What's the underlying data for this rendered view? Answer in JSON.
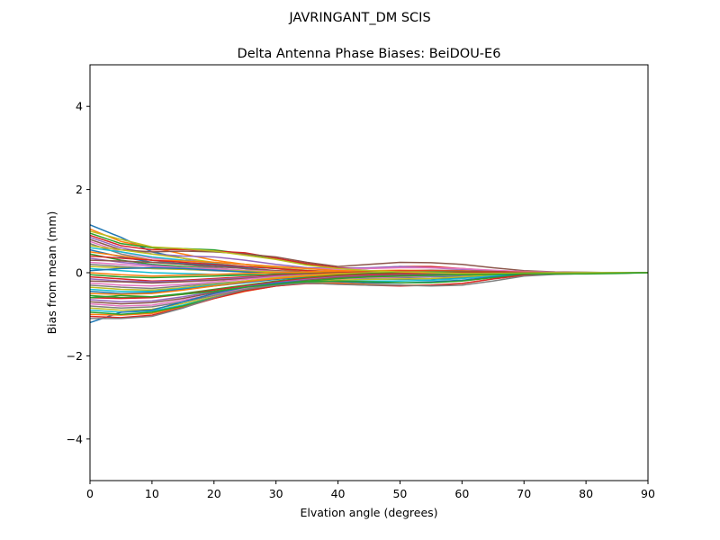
{
  "chart_data": {
    "type": "line",
    "suptitle": "JAVRINGANT_DM   SCIS",
    "title": "Delta Antenna Phase Biases: BeiDOU-E6",
    "xlabel": "Elvation angle (degrees)",
    "ylabel": "Bias from mean (mm)",
    "xlim": [
      0,
      90
    ],
    "ylim": [
      -5,
      5
    ],
    "xticks": [
      0,
      10,
      20,
      30,
      40,
      50,
      60,
      70,
      80,
      90
    ],
    "yticks": [
      -4,
      -2,
      0,
      2,
      4
    ],
    "ytick_labels": [
      "−4",
      "−2",
      "0",
      "2",
      "4"
    ],
    "grid": false,
    "legend": "none",
    "x": [
      0,
      5,
      10,
      15,
      20,
      25,
      30,
      35,
      40,
      45,
      50,
      55,
      60,
      65,
      70,
      75,
      80,
      85,
      90
    ],
    "series": [
      {
        "color": "#1f77b4",
        "values": [
          1.15,
          0.85,
          0.5,
          0.35,
          0.2,
          0.1,
          0.0,
          -0.08,
          -0.12,
          -0.15,
          -0.16,
          -0.15,
          -0.12,
          -0.08,
          -0.04,
          -0.02,
          -0.01,
          0.0,
          0.0
        ]
      },
      {
        "color": "#ff7f0e",
        "values": [
          1.05,
          0.75,
          0.6,
          0.45,
          0.3,
          0.2,
          0.1,
          0.0,
          -0.05,
          -0.08,
          -0.1,
          -0.08,
          -0.05,
          -0.03,
          -0.01,
          0.0,
          0.0,
          0.0,
          0.0
        ]
      },
      {
        "color": "#2ca02c",
        "values": [
          0.95,
          0.7,
          0.6,
          0.58,
          0.55,
          0.45,
          0.35,
          0.2,
          0.1,
          0.05,
          0.0,
          -0.02,
          -0.04,
          -0.04,
          -0.03,
          -0.02,
          -0.01,
          0.0,
          0.0
        ]
      },
      {
        "color": "#d62728",
        "values": [
          0.9,
          0.65,
          0.55,
          0.56,
          0.52,
          0.48,
          0.35,
          0.22,
          0.12,
          0.1,
          0.15,
          0.15,
          0.1,
          0.05,
          0.02,
          0.0,
          0.0,
          0.0,
          0.0
        ]
      },
      {
        "color": "#9467bd",
        "values": [
          0.85,
          0.6,
          0.45,
          0.4,
          0.38,
          0.3,
          0.2,
          0.12,
          0.1,
          0.12,
          0.15,
          0.12,
          0.08,
          0.05,
          0.02,
          0.01,
          0.0,
          0.0,
          0.0
        ]
      },
      {
        "color": "#8c564b",
        "values": [
          0.8,
          0.55,
          0.5,
          0.52,
          0.5,
          0.45,
          0.38,
          0.25,
          0.15,
          0.2,
          0.25,
          0.24,
          0.2,
          0.12,
          0.05,
          0.02,
          0.01,
          0.0,
          0.0
        ]
      },
      {
        "color": "#e377c2",
        "values": [
          0.75,
          0.5,
          0.35,
          0.3,
          0.25,
          0.2,
          0.15,
          0.1,
          0.08,
          0.1,
          0.12,
          0.12,
          0.1,
          0.06,
          0.03,
          0.01,
          0.0,
          0.0,
          0.0
        ]
      },
      {
        "color": "#7f7f7f",
        "values": [
          0.7,
          0.45,
          0.3,
          0.2,
          0.12,
          0.05,
          0.0,
          -0.05,
          -0.1,
          -0.12,
          -0.12,
          -0.1,
          -0.08,
          -0.05,
          -0.02,
          -0.01,
          0.0,
          0.0,
          0.0
        ]
      },
      {
        "color": "#bcbd22",
        "values": [
          0.65,
          0.55,
          0.45,
          0.35,
          0.25,
          0.2,
          0.12,
          0.06,
          0.02,
          0.0,
          0.02,
          0.04,
          0.04,
          0.03,
          0.01,
          0.0,
          0.0,
          0.0,
          0.0
        ]
      },
      {
        "color": "#17becf",
        "values": [
          0.6,
          0.5,
          0.38,
          0.3,
          0.22,
          0.15,
          0.1,
          0.05,
          0.0,
          -0.03,
          -0.05,
          -0.05,
          -0.04,
          -0.02,
          -0.01,
          0.0,
          0.0,
          0.0,
          0.0
        ]
      },
      {
        "color": "#1f77b4",
        "values": [
          0.55,
          0.38,
          0.25,
          0.22,
          0.18,
          0.12,
          0.05,
          0.0,
          -0.04,
          -0.06,
          -0.07,
          -0.06,
          -0.04,
          -0.02,
          -0.01,
          0.0,
          0.0,
          0.0,
          0.0
        ]
      },
      {
        "color": "#ff7f0e",
        "values": [
          0.5,
          0.4,
          0.3,
          0.28,
          0.25,
          0.2,
          0.15,
          0.1,
          0.05,
          0.04,
          0.05,
          0.05,
          0.04,
          0.02,
          0.01,
          0.0,
          0.0,
          0.0,
          0.0
        ]
      },
      {
        "color": "#2ca02c",
        "values": [
          0.45,
          0.3,
          0.2,
          0.15,
          0.1,
          0.05,
          0.0,
          -0.05,
          -0.08,
          -0.1,
          -0.1,
          -0.08,
          -0.06,
          -0.03,
          -0.01,
          0.0,
          0.0,
          0.0,
          0.0
        ]
      },
      {
        "color": "#d62728",
        "values": [
          0.4,
          0.35,
          0.3,
          0.25,
          0.2,
          0.15,
          0.1,
          0.05,
          0.02,
          0.0,
          -0.02,
          -0.02,
          -0.02,
          -0.01,
          0.0,
          0.0,
          0.0,
          0.0,
          0.0
        ]
      },
      {
        "color": "#9467bd",
        "values": [
          0.35,
          0.25,
          0.18,
          0.12,
          0.08,
          0.04,
          0.0,
          -0.03,
          -0.05,
          -0.06,
          -0.06,
          -0.05,
          -0.03,
          -0.02,
          -0.01,
          0.0,
          0.0,
          0.0,
          0.0
        ]
      },
      {
        "color": "#8c564b",
        "values": [
          0.3,
          0.28,
          0.25,
          0.2,
          0.15,
          0.1,
          0.05,
          0.02,
          0.0,
          0.02,
          0.05,
          0.06,
          0.05,
          0.03,
          0.01,
          0.0,
          0.0,
          0.0,
          0.0
        ]
      },
      {
        "color": "#e377c2",
        "values": [
          0.25,
          0.2,
          0.15,
          0.12,
          0.1,
          0.06,
          0.03,
          0.0,
          -0.02,
          -0.02,
          -0.02,
          -0.02,
          -0.01,
          -0.01,
          0.0,
          0.0,
          0.0,
          0.0,
          0.0
        ]
      },
      {
        "color": "#7f7f7f",
        "values": [
          0.2,
          0.15,
          0.1,
          0.08,
          0.05,
          0.02,
          0.0,
          -0.02,
          -0.04,
          -0.05,
          -0.05,
          -0.04,
          -0.03,
          -0.02,
          -0.01,
          0.0,
          0.0,
          0.0,
          0.0
        ]
      },
      {
        "color": "#bcbd22",
        "values": [
          0.15,
          0.12,
          0.1,
          0.08,
          0.06,
          0.04,
          0.02,
          0.0,
          0.0,
          0.02,
          0.03,
          0.03,
          0.02,
          0.01,
          0.0,
          0.0,
          0.0,
          0.0,
          0.0
        ]
      },
      {
        "color": "#17becf",
        "values": [
          0.1,
          0.05,
          0.0,
          -0.02,
          -0.04,
          -0.05,
          -0.05,
          -0.05,
          -0.05,
          -0.05,
          -0.05,
          -0.04,
          -0.03,
          -0.02,
          -0.01,
          0.0,
          0.0,
          0.0,
          0.0
        ]
      },
      {
        "color": "#1f77b4",
        "values": [
          0.05,
          0.1,
          0.12,
          0.1,
          0.06,
          0.02,
          -0.02,
          -0.05,
          -0.08,
          -0.1,
          -0.1,
          -0.09,
          -0.07,
          -0.04,
          -0.02,
          -0.01,
          0.0,
          0.0,
          0.0
        ]
      },
      {
        "color": "#ff7f0e",
        "values": [
          0.0,
          -0.05,
          -0.08,
          -0.06,
          -0.04,
          -0.02,
          0.0,
          0.02,
          0.04,
          0.05,
          0.06,
          0.05,
          0.04,
          0.02,
          0.01,
          0.0,
          0.0,
          0.0,
          0.0
        ]
      },
      {
        "color": "#2ca02c",
        "values": [
          -0.05,
          -0.1,
          -0.12,
          -0.1,
          -0.08,
          -0.06,
          -0.04,
          -0.02,
          0.0,
          0.02,
          0.03,
          0.03,
          0.02,
          0.01,
          0.0,
          0.0,
          0.0,
          0.0,
          0.0
        ]
      },
      {
        "color": "#d62728",
        "values": [
          -0.1,
          -0.15,
          -0.2,
          -0.18,
          -0.14,
          -0.1,
          -0.06,
          -0.03,
          0.0,
          0.02,
          0.04,
          0.04,
          0.03,
          0.02,
          0.01,
          0.0,
          0.0,
          0.0,
          0.0
        ]
      },
      {
        "color": "#9467bd",
        "values": [
          -0.15,
          -0.2,
          -0.22,
          -0.2,
          -0.16,
          -0.12,
          -0.08,
          -0.05,
          -0.03,
          -0.02,
          -0.02,
          -0.02,
          -0.01,
          -0.01,
          0.0,
          0.0,
          0.0,
          0.0,
          0.0
        ]
      },
      {
        "color": "#8c564b",
        "values": [
          -0.2,
          -0.22,
          -0.25,
          -0.22,
          -0.18,
          -0.14,
          -0.1,
          -0.06,
          -0.03,
          0.0,
          0.02,
          0.03,
          0.02,
          0.01,
          0.0,
          0.0,
          0.0,
          0.0,
          0.0
        ]
      },
      {
        "color": "#e377c2",
        "values": [
          -0.25,
          -0.3,
          -0.32,
          -0.28,
          -0.22,
          -0.16,
          -0.1,
          -0.06,
          -0.04,
          -0.03,
          -0.03,
          -0.03,
          -0.02,
          -0.01,
          0.0,
          0.0,
          0.0,
          0.0,
          0.0
        ]
      },
      {
        "color": "#7f7f7f",
        "values": [
          -0.3,
          -0.35,
          -0.38,
          -0.32,
          -0.26,
          -0.2,
          -0.14,
          -0.1,
          -0.08,
          -0.08,
          -0.08,
          -0.07,
          -0.05,
          -0.03,
          -0.01,
          0.0,
          0.0,
          0.0,
          0.0
        ]
      },
      {
        "color": "#bcbd22",
        "values": [
          -0.35,
          -0.4,
          -0.42,
          -0.36,
          -0.28,
          -0.2,
          -0.12,
          -0.06,
          -0.02,
          0.0,
          0.02,
          0.02,
          0.01,
          0.0,
          0.0,
          0.0,
          0.0,
          0.0,
          0.0
        ]
      },
      {
        "color": "#17becf",
        "values": [
          -0.4,
          -0.45,
          -0.45,
          -0.38,
          -0.3,
          -0.22,
          -0.15,
          -0.1,
          -0.06,
          -0.04,
          -0.03,
          -0.03,
          -0.02,
          -0.01,
          0.0,
          0.0,
          0.0,
          0.0,
          0.0
        ]
      },
      {
        "color": "#1f77b4",
        "values": [
          -0.45,
          -0.5,
          -0.48,
          -0.4,
          -0.32,
          -0.24,
          -0.16,
          -0.1,
          -0.07,
          -0.06,
          -0.06,
          -0.05,
          -0.04,
          -0.02,
          -0.01,
          0.0,
          0.0,
          0.0,
          0.0
        ]
      },
      {
        "color": "#ff7f0e",
        "values": [
          -0.5,
          -0.52,
          -0.5,
          -0.42,
          -0.32,
          -0.22,
          -0.14,
          -0.08,
          -0.04,
          -0.02,
          -0.01,
          0.0,
          0.0,
          0.0,
          0.0,
          0.0,
          0.0,
          0.0,
          0.0
        ]
      },
      {
        "color": "#2ca02c",
        "values": [
          -0.55,
          -0.6,
          -0.58,
          -0.5,
          -0.4,
          -0.3,
          -0.2,
          -0.12,
          -0.06,
          -0.02,
          0.0,
          0.01,
          0.01,
          0.0,
          0.0,
          0.0,
          0.0,
          0.0,
          0.0
        ]
      },
      {
        "color": "#d62728",
        "values": [
          -0.6,
          -0.62,
          -0.6,
          -0.52,
          -0.42,
          -0.32,
          -0.22,
          -0.14,
          -0.08,
          -0.04,
          -0.02,
          -0.01,
          0.0,
          0.0,
          0.0,
          0.0,
          0.0,
          0.0,
          0.0
        ]
      },
      {
        "color": "#9467bd",
        "values": [
          -0.65,
          -0.7,
          -0.68,
          -0.58,
          -0.46,
          -0.34,
          -0.24,
          -0.16,
          -0.1,
          -0.07,
          -0.06,
          -0.05,
          -0.04,
          -0.02,
          -0.01,
          0.0,
          0.0,
          0.0,
          0.0
        ]
      },
      {
        "color": "#8c564b",
        "values": [
          -0.7,
          -0.75,
          -0.72,
          -0.62,
          -0.48,
          -0.36,
          -0.26,
          -0.18,
          -0.12,
          -0.08,
          -0.06,
          -0.05,
          -0.04,
          -0.02,
          -0.01,
          0.0,
          0.0,
          0.0,
          0.0
        ]
      },
      {
        "color": "#e377c2",
        "values": [
          -0.75,
          -0.8,
          -0.78,
          -0.66,
          -0.52,
          -0.38,
          -0.27,
          -0.2,
          -0.15,
          -0.12,
          -0.1,
          -0.08,
          -0.06,
          -0.03,
          -0.01,
          0.0,
          0.0,
          0.0,
          0.0
        ]
      },
      {
        "color": "#7f7f7f",
        "values": [
          -0.8,
          -0.85,
          -0.82,
          -0.7,
          -0.55,
          -0.4,
          -0.28,
          -0.2,
          -0.14,
          -0.1,
          -0.08,
          -0.07,
          -0.05,
          -0.03,
          -0.01,
          0.0,
          0.0,
          0.0,
          0.0
        ]
      },
      {
        "color": "#bcbd22",
        "values": [
          -0.85,
          -0.9,
          -0.88,
          -0.74,
          -0.58,
          -0.42,
          -0.3,
          -0.22,
          -0.18,
          -0.16,
          -0.15,
          -0.14,
          -0.1,
          -0.05,
          -0.02,
          -0.01,
          0.0,
          0.0,
          0.0
        ]
      },
      {
        "color": "#17becf",
        "values": [
          -0.9,
          -0.95,
          -0.92,
          -0.78,
          -0.6,
          -0.44,
          -0.32,
          -0.24,
          -0.2,
          -0.2,
          -0.2,
          -0.18,
          -0.14,
          -0.08,
          -0.03,
          -0.01,
          0.0,
          0.0,
          0.0
        ]
      },
      {
        "color": "#1f77b4",
        "values": [
          -1.2,
          -0.95,
          -0.9,
          -0.7,
          -0.5,
          -0.35,
          -0.25,
          -0.2,
          -0.22,
          -0.25,
          -0.25,
          -0.22,
          -0.18,
          -0.1,
          -0.04,
          -0.02,
          -0.01,
          0.0,
          0.0
        ]
      },
      {
        "color": "#ff7f0e",
        "values": [
          -1.0,
          -1.02,
          -0.98,
          -0.82,
          -0.62,
          -0.45,
          -0.32,
          -0.25,
          -0.25,
          -0.28,
          -0.3,
          -0.3,
          -0.26,
          -0.15,
          -0.06,
          -0.03,
          -0.02,
          -0.01,
          0.0
        ]
      },
      {
        "color": "#2ca02c",
        "values": [
          -0.95,
          -1.0,
          -0.95,
          -0.8,
          -0.6,
          -0.42,
          -0.3,
          -0.22,
          -0.2,
          -0.22,
          -0.24,
          -0.24,
          -0.2,
          -0.12,
          -0.05,
          -0.02,
          -0.01,
          0.0,
          0.0
        ]
      },
      {
        "color": "#d62728",
        "values": [
          -1.05,
          -1.08,
          -1.02,
          -0.84,
          -0.62,
          -0.44,
          -0.32,
          -0.26,
          -0.27,
          -0.3,
          -0.32,
          -0.3,
          -0.26,
          -0.15,
          -0.06,
          -0.03,
          -0.02,
          -0.01,
          0.0
        ]
      },
      {
        "color": "#7f7f7f",
        "values": [
          -1.1,
          -1.1,
          -1.05,
          -0.85,
          -0.6,
          -0.4,
          -0.3,
          -0.25,
          -0.28,
          -0.3,
          -0.3,
          -0.32,
          -0.3,
          -0.2,
          -0.08,
          -0.04,
          -0.02,
          -0.01,
          0.0
        ]
      },
      {
        "color": "#bcbd22",
        "values": [
          1.0,
          0.8,
          0.62,
          0.58,
          0.52,
          0.42,
          0.32,
          0.18,
          0.1,
          0.05,
          0.02,
          0.0,
          -0.02,
          -0.02,
          -0.01,
          0.0,
          0.0,
          0.0,
          0.0
        ]
      },
      {
        "color": "#2ca02c",
        "values": [
          -0.6,
          -0.55,
          -0.58,
          -0.52,
          -0.45,
          -0.35,
          -0.28,
          -0.2,
          -0.14,
          -0.1,
          -0.08,
          -0.06,
          -0.05,
          -0.04,
          -0.03,
          -0.03,
          -0.03,
          -0.02,
          0.0
        ]
      }
    ]
  }
}
